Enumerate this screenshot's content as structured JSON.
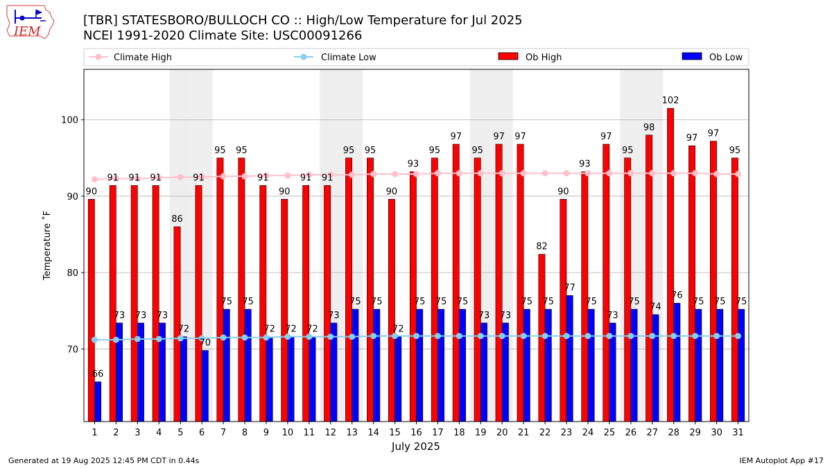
{
  "logo": {
    "text": "IEM"
  },
  "footer": {
    "generated": "Generated at 19 Aug 2025 12:45 PM CDT in 0.44s",
    "app": "IEM Autoplot App #17"
  },
  "colors": {
    "ob_high": "#ff0000",
    "ob_low": "#0000ff",
    "climate_high": "#ffc0cb",
    "climate_low": "#87ceeb",
    "weekend": "#eeeeee",
    "grid": "#b0b0b0"
  },
  "chart_data": {
    "type": "bar",
    "title": "[TBR] STATESBORO/BULLOCH CO :: High/Low Temperature for Jul 2025",
    "subtitle": "NCEI 1991-2020 Climate Site: USC00091266",
    "xlabel": "July 2025",
    "ylabel": "Temperature ˚F",
    "ylim": [
      60.5,
      106.6
    ],
    "yticks": [
      70,
      80,
      90,
      100
    ],
    "categories": [
      "1",
      "2",
      "3",
      "4",
      "5",
      "6",
      "7",
      "8",
      "9",
      "10",
      "11",
      "12",
      "13",
      "14",
      "15",
      "16",
      "17",
      "18",
      "19",
      "20",
      "21",
      "22",
      "23",
      "24",
      "25",
      "26",
      "27",
      "28",
      "29",
      "30",
      "31"
    ],
    "shaded_days": [
      5,
      6,
      12,
      13,
      19,
      20,
      26,
      27
    ],
    "legend": [
      "Climate High",
      "Climate Low",
      "Ob High",
      "Ob Low"
    ],
    "series": [
      {
        "name": "Ob High",
        "kind": "bar",
        "values": [
          89.6,
          91.4,
          91.4,
          91.4,
          86.0,
          91.4,
          95.0,
          95.0,
          91.4,
          89.6,
          91.4,
          91.4,
          95.0,
          95.0,
          89.6,
          93.2,
          95.0,
          96.8,
          95.0,
          96.8,
          96.8,
          82.4,
          89.6,
          93.2,
          96.8,
          95.0,
          98.0,
          101.5,
          96.6,
          97.2,
          95.0
        ],
        "labels": [
          "90",
          "91",
          "91",
          "91",
          "86",
          "91",
          "95",
          "95",
          "91",
          "90",
          "91",
          "91",
          "95",
          "95",
          "90",
          "93",
          "95",
          "97",
          "95",
          "97",
          "97",
          "82",
          "90",
          "93",
          "97",
          "95",
          "98",
          "102",
          "97",
          "97",
          "95"
        ]
      },
      {
        "name": "Ob Low",
        "kind": "bar",
        "values": [
          65.7,
          73.4,
          73.4,
          73.4,
          71.6,
          69.8,
          75.2,
          75.2,
          71.6,
          71.6,
          71.6,
          73.4,
          75.2,
          75.2,
          71.6,
          75.2,
          75.2,
          75.2,
          73.4,
          73.4,
          75.2,
          75.2,
          77.0,
          75.2,
          73.4,
          75.2,
          74.5,
          76.0,
          75.2,
          75.2,
          75.2
        ],
        "labels": [
          "66",
          "73",
          "73",
          "73",
          "72",
          "70",
          "75",
          "75",
          "72",
          "72",
          "72",
          "73",
          "75",
          "75",
          "72",
          "75",
          "75",
          "75",
          "73",
          "73",
          "75",
          "75",
          "77",
          "75",
          "73",
          "75",
          "74",
          "76",
          "75",
          "75",
          "75"
        ]
      },
      {
        "name": "Climate High",
        "kind": "line",
        "values": [
          92.2,
          92.3,
          92.3,
          92.4,
          92.5,
          92.5,
          92.6,
          92.6,
          92.7,
          92.7,
          92.8,
          92.8,
          92.8,
          92.9,
          92.9,
          92.9,
          93.0,
          93.0,
          93.0,
          93.0,
          93.0,
          93.0,
          93.0,
          93.0,
          93.0,
          93.0,
          93.0,
          93.0,
          93.0,
          92.9,
          92.9
        ]
      },
      {
        "name": "Climate Low",
        "kind": "line",
        "values": [
          71.2,
          71.2,
          71.3,
          71.3,
          71.4,
          71.4,
          71.5,
          71.5,
          71.5,
          71.6,
          71.6,
          71.6,
          71.6,
          71.7,
          71.7,
          71.7,
          71.7,
          71.7,
          71.7,
          71.7,
          71.7,
          71.7,
          71.7,
          71.7,
          71.7,
          71.7,
          71.7,
          71.7,
          71.7,
          71.7,
          71.7
        ]
      }
    ]
  }
}
